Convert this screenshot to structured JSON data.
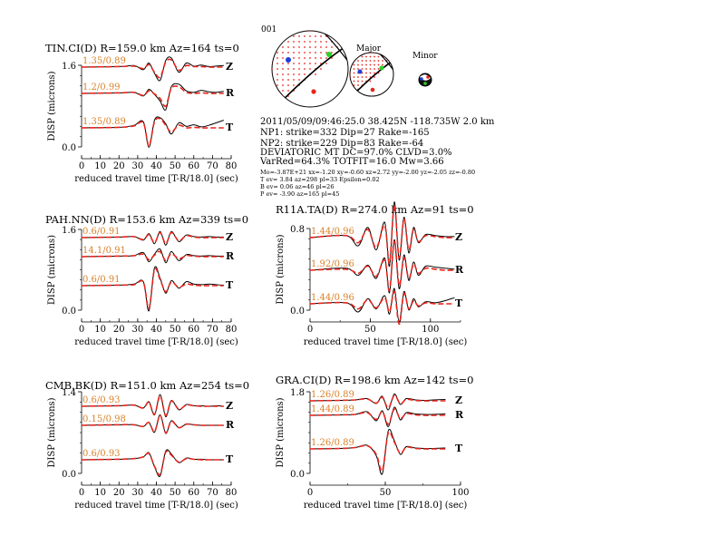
{
  "event": {
    "id": "001",
    "origin": "2011/05/09/09:46:25.0 38.425N -118.735W 2.0 km",
    "np1": "NP1: strike=332 Dip=27 Rake=-165",
    "np2": "NP2: strike=229 Dip=83 Rake=-64",
    "deviatoric": "DEVIATORIC MT DC=97.0% CLVD=3.0%",
    "varred": "VarRed=64.3% TOTFIT=16.0 Mw=3.66",
    "mo_line": "Mo=-3.87E+21 xx=-1.20 xy=-0.60 xz=2.72 yy=-2.00 yz=-2.05 zz=-0.80",
    "tev": "T ev= 3.84 az=298 pl=33 Epsilon=0.02",
    "bev": "B ev= 0.06 az=46 pl=26",
    "pev": "P ev= -3.90 az=165 pl=45",
    "major_label": "Major",
    "minor_label": "Minor"
  },
  "colors": {
    "observed": "#000000",
    "synthetic": "#e8241c",
    "label": "#d9822b",
    "grid": "#000000"
  },
  "chart_data": [
    {
      "type": "line",
      "title": "TIN.CI(D) R=159.0 km Az=164 ts=0",
      "xlabel": "reduced travel time [T-R/18.0] (sec)",
      "ylabel": "DISP (microns)",
      "xlim": [
        0,
        80
      ],
      "ylim": [
        0,
        1.6
      ],
      "xticks": [
        0,
        10,
        20,
        30,
        40,
        50,
        60,
        70,
        80
      ],
      "ytick_labels": [
        "1.6",
        "0.0"
      ],
      "series": [
        {
          "component": "Z",
          "fit": "1.35/0.89",
          "x": [
            0,
            20,
            28,
            33,
            36,
            39,
            42,
            45,
            48,
            52,
            56,
            60,
            64,
            68,
            72,
            76
          ],
          "observed": [
            0,
            0.01,
            0.03,
            -0.05,
            0.08,
            -0.12,
            -0.26,
            0.13,
            0.18,
            -0.1,
            0.08,
            0.02,
            0.04,
            0.01,
            0.02,
            0.03
          ],
          "synthetic": [
            0,
            0.01,
            0.02,
            -0.03,
            0.05,
            -0.1,
            -0.2,
            0.1,
            0.14,
            -0.06,
            0.03,
            0.01,
            0.01,
            0,
            0,
            0
          ]
        },
        {
          "component": "R",
          "fit": "1.2/0.99",
          "x": [
            0,
            20,
            28,
            33,
            36,
            39,
            42,
            45,
            48,
            52,
            56,
            60,
            64,
            68,
            72,
            76
          ],
          "observed": [
            0,
            0.01,
            0.02,
            -0.05,
            0.08,
            -0.02,
            -0.15,
            -0.32,
            0.13,
            0.18,
            0.05,
            0.02,
            0.06,
            0.03,
            0.02,
            0.04
          ],
          "synthetic": [
            0,
            0.01,
            0.02,
            -0.04,
            0.05,
            -0.01,
            -0.1,
            -0.25,
            0.1,
            0.13,
            0.02,
            0,
            0.01,
            0,
            0,
            0
          ]
        },
        {
          "component": "T",
          "fit": "1.35/0.89",
          "x": [
            0,
            20,
            28,
            33,
            36,
            39,
            42,
            45,
            48,
            52,
            56,
            60,
            64,
            68,
            72,
            76
          ],
          "observed": [
            0,
            0.01,
            0.05,
            0.12,
            -0.38,
            0.15,
            0.2,
            0.08,
            -0.12,
            0.1,
            0.03,
            0.06,
            0.02,
            0.05,
            0.1,
            0.15
          ],
          "synthetic": [
            0,
            0.01,
            0.04,
            0.1,
            -0.35,
            0.12,
            0.18,
            0.05,
            -0.08,
            0.05,
            0,
            0.01,
            0,
            0,
            0,
            0
          ]
        }
      ]
    },
    {
      "type": "line",
      "title": "PAH.NN(D) R=153.6 km Az=339 ts=0",
      "xlabel": "reduced travel time [T-R/18.0] (sec)",
      "ylabel": "DISP (microns)",
      "xlim": [
        0,
        80
      ],
      "ylim": [
        0,
        1.6
      ],
      "xticks": [
        0,
        10,
        20,
        30,
        40,
        50,
        60,
        70,
        80
      ],
      "ytick_labels": [
        "1.6",
        "0.0"
      ],
      "series": [
        {
          "component": "Z",
          "fit": "0.6/0.91",
          "x": [
            0,
            20,
            28,
            33,
            36,
            39,
            42,
            45,
            48,
            52,
            56,
            60,
            64,
            68,
            72,
            76
          ],
          "observed": [
            0,
            0.01,
            0.02,
            -0.05,
            0.08,
            -0.12,
            0.12,
            -0.15,
            0.12,
            -0.08,
            0.05,
            0.02,
            0.01,
            0.02,
            0.01,
            0.01
          ],
          "synthetic": [
            0,
            0.01,
            0.02,
            -0.04,
            0.06,
            -0.1,
            0.1,
            -0.12,
            0.1,
            -0.06,
            0.04,
            0.01,
            0,
            0,
            0,
            0
          ]
        },
        {
          "component": "R",
          "fit": "14.1/0.91",
          "x": [
            0,
            20,
            28,
            33,
            36,
            39,
            42,
            45,
            48,
            52,
            56,
            60,
            64,
            68,
            72,
            76
          ],
          "observed": [
            0,
            0.01,
            0.02,
            0.08,
            -0.1,
            0.05,
            0.15,
            -0.12,
            0.1,
            -0.08,
            0.04,
            0.02,
            0.01,
            0.02,
            0.01,
            0.01
          ],
          "synthetic": [
            0,
            0.01,
            0.02,
            0.05,
            -0.06,
            0.03,
            0.1,
            -0.08,
            0.06,
            -0.04,
            0.02,
            0.01,
            0,
            0,
            0,
            0
          ]
        },
        {
          "component": "T",
          "fit": "0.6/0.91",
          "x": [
            0,
            20,
            28,
            33,
            36,
            39,
            42,
            45,
            48,
            52,
            56,
            60,
            64,
            68,
            72,
            76
          ],
          "observed": [
            0,
            0.01,
            0.03,
            0.08,
            -0.5,
            0.35,
            0.15,
            -0.15,
            0.1,
            -0.05,
            0.08,
            0.03,
            0.02,
            0.03,
            0.02,
            0.01
          ],
          "synthetic": [
            0,
            0.01,
            0.02,
            0.07,
            -0.45,
            0.32,
            0.12,
            -0.12,
            0.07,
            -0.03,
            0.03,
            0.01,
            0,
            0,
            0,
            0
          ]
        }
      ]
    },
    {
      "type": "line",
      "title": "CMB.BK(D) R=151.0 km Az=254 ts=0",
      "xlabel": "reduced travel time [T-R/18.0] (sec)",
      "ylabel": "DISP (microns)",
      "xlim": [
        0,
        80
      ],
      "ylim": [
        0,
        1.4
      ],
      "xticks": [
        0,
        10,
        20,
        30,
        40,
        50,
        60,
        70,
        80
      ],
      "ytick_labels": [
        "1.4",
        "0.0"
      ],
      "series": [
        {
          "component": "Z",
          "fit": "0.6/0.93",
          "x": [
            0,
            20,
            28,
            33,
            36,
            39,
            42,
            45,
            48,
            52,
            56,
            60,
            64,
            68,
            72,
            76
          ],
          "observed": [
            0,
            0.01,
            0.02,
            -0.03,
            0.08,
            -0.15,
            0.2,
            -0.18,
            0.1,
            -0.06,
            0.03,
            0.01,
            0.01,
            0,
            0.01,
            0
          ],
          "synthetic": [
            0,
            0.01,
            0.02,
            -0.03,
            0.07,
            -0.14,
            0.18,
            -0.16,
            0.09,
            -0.05,
            0.02,
            0.01,
            0,
            0,
            0,
            0
          ]
        },
        {
          "component": "R",
          "fit": "0.15/0.98",
          "x": [
            0,
            20,
            28,
            33,
            36,
            39,
            42,
            45,
            48,
            52,
            56,
            60,
            64,
            68,
            72,
            76
          ],
          "observed": [
            0,
            0.01,
            0.01,
            -0.02,
            0.05,
            -0.12,
            0.18,
            -0.14,
            0.08,
            -0.04,
            0.02,
            0.01,
            0,
            0,
            0,
            0
          ],
          "synthetic": [
            0,
            0.01,
            0.01,
            -0.02,
            0.05,
            -0.11,
            0.17,
            -0.13,
            0.07,
            -0.04,
            0.02,
            0.01,
            0,
            0,
            0,
            0
          ]
        },
        {
          "component": "T",
          "fit": "0.6/0.93",
          "x": [
            0,
            20,
            28,
            33,
            36,
            39,
            42,
            45,
            48,
            52,
            56,
            60,
            64,
            68,
            72,
            76
          ],
          "observed": [
            0,
            0.01,
            0.02,
            0.05,
            0.12,
            -0.12,
            -0.28,
            0.15,
            0.1,
            -0.05,
            0.03,
            0.01,
            0.01,
            0,
            0,
            0
          ],
          "synthetic": [
            0,
            0.01,
            0.02,
            0.05,
            0.11,
            -0.11,
            -0.25,
            0.13,
            0.08,
            -0.04,
            0.02,
            0.01,
            0,
            0,
            0,
            0
          ]
        }
      ]
    },
    {
      "type": "line",
      "title": "R11A.TA(D) R=274.0 km Az=91 ts=0",
      "xlabel": "reduced travel time [T-R/18.0] (sec)",
      "ylabel": "DISP (microns)",
      "xlim": [
        0,
        125
      ],
      "ylim": [
        0,
        0.8
      ],
      "xticks": [
        0,
        50,
        100
      ],
      "ytick_labels": [
        "0.8",
        "0.0"
      ],
      "series": [
        {
          "component": "Z",
          "fit": "1.44/0.96",
          "x": [
            0,
            30,
            40,
            48,
            55,
            62,
            66,
            70,
            74,
            78,
            82,
            86,
            90,
            96,
            104,
            112,
            120
          ],
          "observed": [
            0,
            0.02,
            -0.08,
            0.1,
            -0.12,
            0.15,
            -0.28,
            0.35,
            -0.22,
            0.2,
            -0.15,
            0.1,
            -0.05,
            0.03,
            0.02,
            0.01,
            0.01
          ],
          "synthetic": [
            0,
            0.02,
            -0.05,
            0.08,
            -0.1,
            0.12,
            -0.25,
            0.32,
            -0.2,
            0.18,
            -0.12,
            0.08,
            -0.04,
            0.02,
            0.01,
            0,
            0
          ]
        },
        {
          "component": "R",
          "fit": "1.92/0.96",
          "x": [
            0,
            30,
            40,
            48,
            55,
            62,
            66,
            70,
            74,
            78,
            82,
            86,
            90,
            96,
            104,
            112,
            120
          ],
          "observed": [
            0,
            0.02,
            -0.05,
            0.05,
            -0.08,
            0.12,
            -0.22,
            0.3,
            -0.18,
            0.15,
            -0.1,
            0.08,
            -0.05,
            0.04,
            0.03,
            0.02,
            0.01
          ],
          "synthetic": [
            0,
            0.01,
            -0.03,
            0.04,
            -0.06,
            0.1,
            -0.2,
            0.28,
            -0.15,
            0.12,
            -0.08,
            0.06,
            -0.03,
            0.02,
            0.01,
            0,
            0
          ]
        },
        {
          "component": "T",
          "fit": "1.44/0.96",
          "x": [
            0,
            30,
            40,
            48,
            55,
            62,
            66,
            70,
            74,
            78,
            82,
            86,
            90,
            96,
            104,
            112,
            120
          ],
          "observed": [
            0,
            0.01,
            -0.08,
            0.05,
            -0.05,
            0.08,
            -0.1,
            0.15,
            -0.18,
            0.12,
            -0.06,
            0.05,
            -0.03,
            0.02,
            0.01,
            0.03,
            0.06
          ],
          "synthetic": [
            0,
            0.01,
            -0.05,
            0.04,
            -0.04,
            0.06,
            -0.08,
            0.12,
            -0.2,
            0.1,
            -0.05,
            0.03,
            -0.02,
            0.01,
            0,
            0,
            0
          ]
        }
      ]
    },
    {
      "type": "line",
      "title": "GRA.CI(D) R=198.6 km Az=142 ts=0",
      "xlabel": "reduced travel time [T-R/18.0] (sec)",
      "ylabel": "DISP (microns)",
      "xlim": [
        0,
        100
      ],
      "ylim": [
        0,
        1.8
      ],
      "xticks": [
        0,
        50,
        100
      ],
      "ytick_labels": [
        "1.8",
        "0.0"
      ],
      "series": [
        {
          "component": "Z",
          "fit": "1.26/0.89",
          "x": [
            0,
            20,
            30,
            38,
            44,
            48,
            52,
            56,
            60,
            64,
            70,
            76,
            82,
            90
          ],
          "observed": [
            0,
            0.01,
            0.02,
            0.05,
            -0.06,
            0.1,
            -0.2,
            0.15,
            -0.08,
            0.05,
            0.02,
            0.01,
            0.02,
            0.03
          ],
          "synthetic": [
            0,
            0.01,
            0.02,
            0.04,
            -0.05,
            0.08,
            -0.16,
            0.12,
            -0.06,
            0.03,
            0.01,
            0,
            0,
            0
          ]
        },
        {
          "component": "R",
          "fit": "1.44/0.89",
          "x": [
            0,
            20,
            30,
            38,
            44,
            48,
            52,
            56,
            60,
            64,
            70,
            76,
            82,
            90
          ],
          "observed": [
            0,
            0.01,
            0.02,
            0.08,
            -0.12,
            0.1,
            -0.25,
            0.18,
            -0.1,
            0.06,
            0.03,
            0.02,
            0.02,
            0.03
          ],
          "synthetic": [
            0,
            0.01,
            0.02,
            0.06,
            -0.09,
            0.08,
            -0.2,
            0.14,
            -0.07,
            0.04,
            0.01,
            0,
            0,
            0
          ]
        },
        {
          "component": "T",
          "fit": "1.26/0.89",
          "x": [
            0,
            20,
            30,
            38,
            44,
            48,
            52,
            56,
            60,
            64,
            70,
            76,
            82,
            90
          ],
          "observed": [
            0,
            0.01,
            0.03,
            0.08,
            -0.15,
            -0.55,
            0.4,
            0.18,
            -0.12,
            0.05,
            0.02,
            0.01,
            0.01,
            0.02
          ],
          "synthetic": [
            0,
            0.01,
            0.03,
            0.07,
            -0.12,
            -0.48,
            0.35,
            0.15,
            -0.1,
            0.04,
            0.01,
            0,
            0,
            0
          ]
        }
      ]
    }
  ]
}
